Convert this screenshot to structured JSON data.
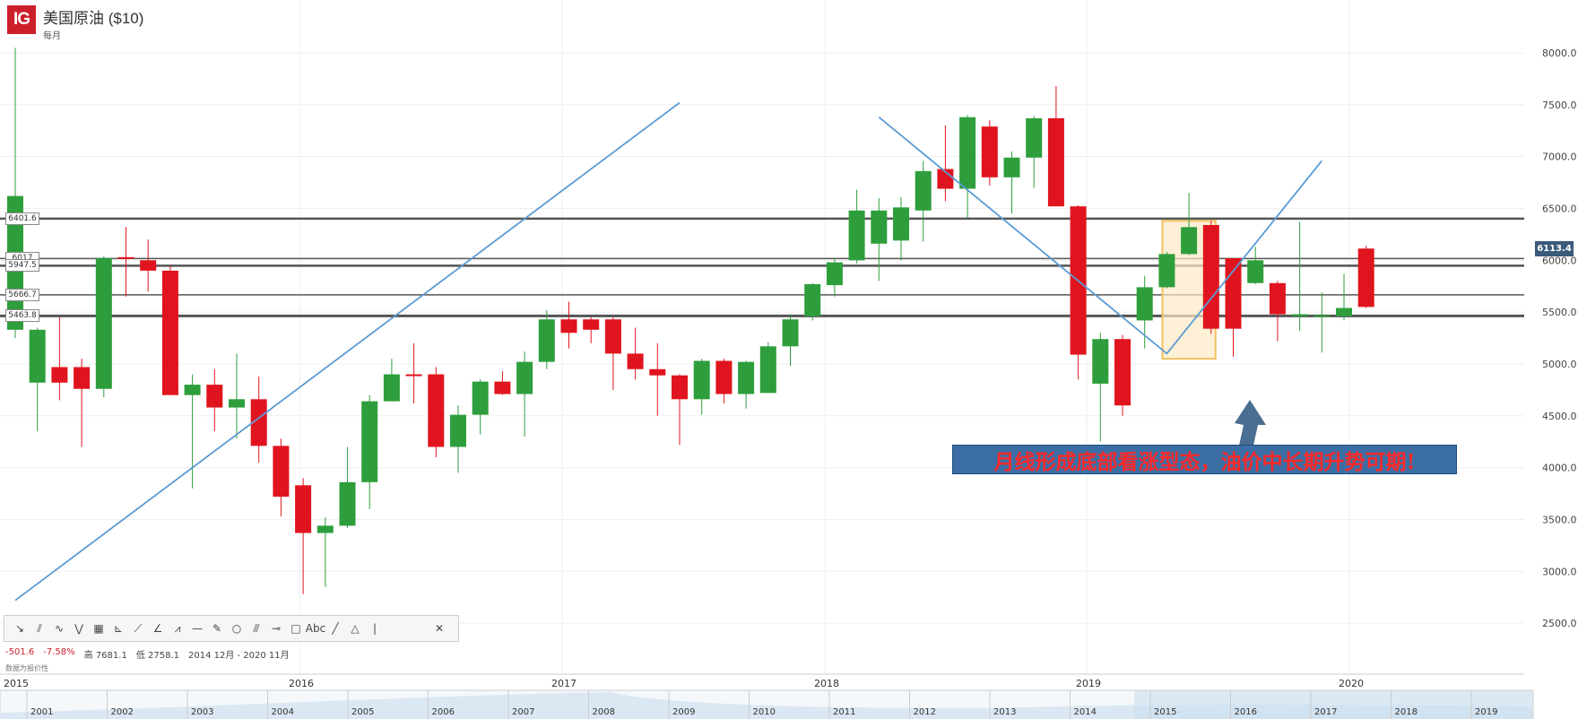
{
  "header": {
    "logo": "IG",
    "title": "美国原油 ($10)",
    "subtitle": "每月"
  },
  "annotation": "月线形成底部看涨型态，油价中长期升势可期!",
  "current_price": "6113.4",
  "stats": {
    "change": "-501.6",
    "change_pct": "-7.58%",
    "high": "高 7681.1",
    "low": "低 2758.1",
    "range": "2014 12月 - 2020 11月"
  },
  "hint": "数据为报价性",
  "toolbar_icons": [
    "trend-line-icon",
    "parallel-channel-icon",
    "curve-icon",
    "wave-icon",
    "fib-grid-icon",
    "fib-fan-icon",
    "gann-fan-icon",
    "angle-icon",
    "zigzag-icon",
    "horizontal-line-icon",
    "ruler-icon",
    "circle-icon",
    "pitchfork-icon",
    "measure-icon",
    "rectangle-icon",
    "text-icon",
    "line-icon",
    "triangle-icon",
    "vertical-line-icon",
    "close-icon"
  ],
  "toolbar_glyphs": [
    "↘",
    "⫽",
    "∿",
    "⋁",
    "▦",
    "⊾",
    "⟋",
    "∠",
    "⩘",
    "—",
    "✎",
    "○",
    "⫻",
    "⊸",
    "□",
    "Abc",
    "╱",
    "△",
    "|",
    "✕"
  ],
  "colors": {
    "up": "#2e9e3c",
    "down": "#e0141e",
    "trend": "#5b9bd5",
    "level": "#555555"
  },
  "chart_data": {
    "type": "candlestick",
    "y_axis": {
      "min": 2300,
      "max": 8200,
      "ticks": [
        "8000.0",
        "7500.0",
        "7000.0",
        "6500.0",
        "6000.0",
        "5500.0",
        "5000.0",
        "4500.0",
        "4000.0",
        "3500.0",
        "3000.0",
        "2500.0"
      ]
    },
    "x_axis_labels": [
      "2015",
      "2016",
      "2017",
      "2018",
      "2019",
      "2020"
    ],
    "navigator_labels": [
      "2001",
      "2002",
      "2003",
      "2004",
      "2005",
      "2006",
      "2007",
      "2008",
      "2009",
      "2010",
      "2011",
      "2012",
      "2013",
      "2014",
      "2015",
      "2016",
      "2017",
      "2018",
      "2019"
    ],
    "horizontal_levels": [
      {
        "value": 6401.6,
        "label": "6401.6"
      },
      {
        "value": 6017,
        "label": "6017"
      },
      {
        "value": 5947.5,
        "label": "5947.5"
      },
      {
        "value": 5666.7,
        "label": "5666.7"
      },
      {
        "value": 5463.8,
        "label": "5463.8"
      }
    ],
    "candles": [
      [
        5330,
        6620,
        5250,
        8050
      ],
      [
        4820,
        5330,
        4350,
        5350
      ],
      [
        4970,
        4820,
        4650,
        5450
      ],
      [
        4970,
        4760,
        4200,
        5050
      ],
      [
        4760,
        6020,
        4680,
        6040
      ],
      [
        6030,
        6020,
        5650,
        6320
      ],
      [
        6000,
        5900,
        5700,
        6200
      ],
      [
        5900,
        4700,
        4700,
        5950
      ],
      [
        4700,
        4800,
        3800,
        4900
      ],
      [
        4800,
        4580,
        4350,
        4950
      ],
      [
        4580,
        4660,
        4280,
        5100
      ],
      [
        4660,
        4210,
        4050,
        4880
      ],
      [
        4210,
        3720,
        3530,
        4280
      ],
      [
        3830,
        3370,
        2780,
        3900
      ],
      [
        3370,
        3440,
        2850,
        3520
      ],
      [
        3440,
        3860,
        3420,
        4200
      ],
      [
        3860,
        4640,
        3600,
        4700
      ],
      [
        4640,
        4900,
        4640,
        5050
      ],
      [
        4900,
        4890,
        4620,
        5200
      ],
      [
        4900,
        4200,
        4100,
        4970
      ],
      [
        4200,
        4510,
        3950,
        4600
      ],
      [
        4510,
        4830,
        4320,
        4850
      ],
      [
        4830,
        4710,
        4700,
        4930
      ],
      [
        4710,
        5020,
        4300,
        5120
      ],
      [
        5020,
        5430,
        4950,
        5520
      ],
      [
        5430,
        5300,
        5150,
        5600
      ],
      [
        5430,
        5330,
        5200,
        5450
      ],
      [
        5430,
        5100,
        4750,
        5450
      ],
      [
        5100,
        4950,
        4850,
        5350
      ],
      [
        4950,
        4890,
        4500,
        5200
      ],
      [
        4890,
        4660,
        4220,
        4900
      ],
      [
        4660,
        5030,
        4510,
        5050
      ],
      [
        5030,
        4710,
        4620,
        5050
      ],
      [
        4710,
        5020,
        4570,
        5030
      ],
      [
        4720,
        5170,
        4720,
        5210
      ],
      [
        5170,
        5430,
        4980,
        5480
      ],
      [
        5460,
        5770,
        5420,
        5780
      ],
      [
        5760,
        5980,
        5650,
        6020
      ],
      [
        6000,
        6480,
        5970,
        6680
      ],
      [
        6160,
        6480,
        5800,
        6600
      ],
      [
        6190,
        6510,
        6000,
        6610
      ],
      [
        6480,
        6860,
        6180,
        6960
      ],
      [
        6880,
        6690,
        6570,
        7300
      ],
      [
        6690,
        7380,
        6410,
        7400
      ],
      [
        7290,
        6800,
        6720,
        7350
      ],
      [
        6800,
        6990,
        6450,
        7050
      ],
      [
        6990,
        7370,
        6700,
        7390
      ],
      [
        7370,
        6520,
        6520,
        7680
      ],
      [
        6520,
        5090,
        4850,
        6530
      ],
      [
        4810,
        5240,
        4250,
        5300
      ],
      [
        5240,
        4600,
        4500,
        5280
      ],
      [
        5420,
        5740,
        5150,
        5850
      ],
      [
        5740,
        6060,
        5730,
        6080
      ],
      [
        6060,
        6320,
        6050,
        6650
      ],
      [
        6340,
        5340,
        5290,
        6380
      ],
      [
        6020,
        5340,
        5070,
        6020
      ],
      [
        5780,
        6000,
        5770,
        6130
      ],
      [
        5780,
        5480,
        5220,
        5800
      ],
      [
        5460,
        5480,
        5320,
        6370
      ],
      [
        5460,
        5470,
        5110,
        5690
      ],
      [
        5460,
        5540,
        5420,
        5870
      ],
      [
        6113,
        5550,
        5540,
        6140
      ]
    ],
    "trend_lines": [
      [
        [
          0,
          2720
        ],
        [
          30,
          7520
        ]
      ],
      [
        [
          39,
          7380
        ],
        [
          52,
          5100
        ],
        [
          59,
          6960
        ]
      ]
    ],
    "highlight_box": {
      "from": 51.8,
      "to": 54.2,
      "low": 5050,
      "high": 6380
    }
  }
}
